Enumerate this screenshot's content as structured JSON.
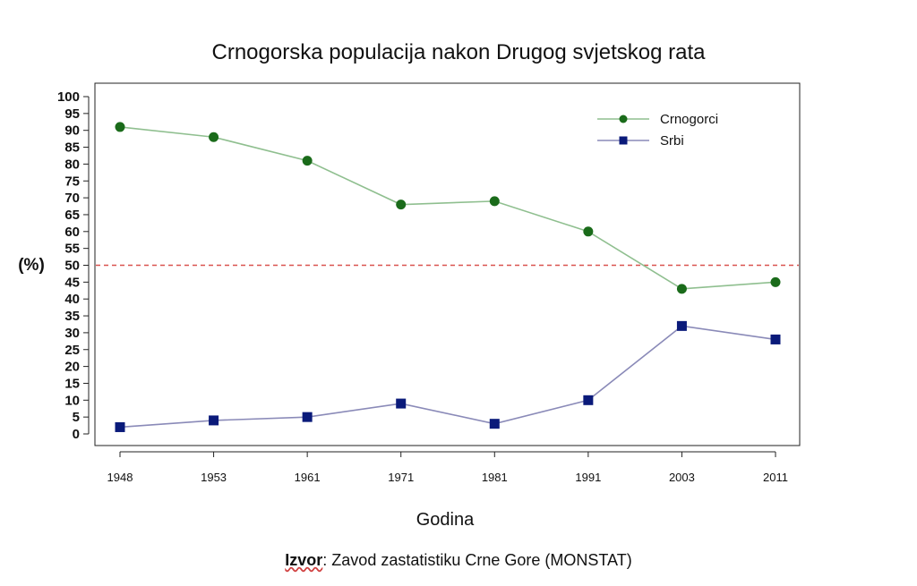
{
  "chart_data": {
    "type": "line",
    "title": "Crnogorska populacija nakon Drugog svjetskog rata",
    "xlabel": "Godina",
    "ylabel": "(%)",
    "categories": [
      "1948",
      "1953",
      "1961",
      "1971",
      "1981",
      "1991",
      "2003",
      "2011"
    ],
    "ylim": [
      0,
      100
    ],
    "yticks": [
      0,
      5,
      10,
      15,
      20,
      25,
      30,
      35,
      40,
      45,
      50,
      55,
      60,
      65,
      70,
      75,
      80,
      85,
      90,
      95,
      100
    ],
    "reference_line": {
      "y": 50,
      "color": "#d9534f",
      "style": "dashed"
    },
    "legend_position": "top-right",
    "series": [
      {
        "name": "Crnogorci",
        "values": [
          91,
          88,
          81,
          68,
          69,
          60,
          43,
          45
        ],
        "color": "#1a6b1a",
        "line_color": "#8fbf8f",
        "marker": "circle"
      },
      {
        "name": "Srbi",
        "values": [
          2,
          4,
          5,
          9,
          3,
          10,
          32,
          28
        ],
        "color": "#0a1a7a",
        "line_color": "#8a8ab8",
        "marker": "square"
      }
    ]
  },
  "source": {
    "label": "Izvor",
    "text": ": Zavod zastatistiku Crne Gore (MONSTAT)"
  }
}
